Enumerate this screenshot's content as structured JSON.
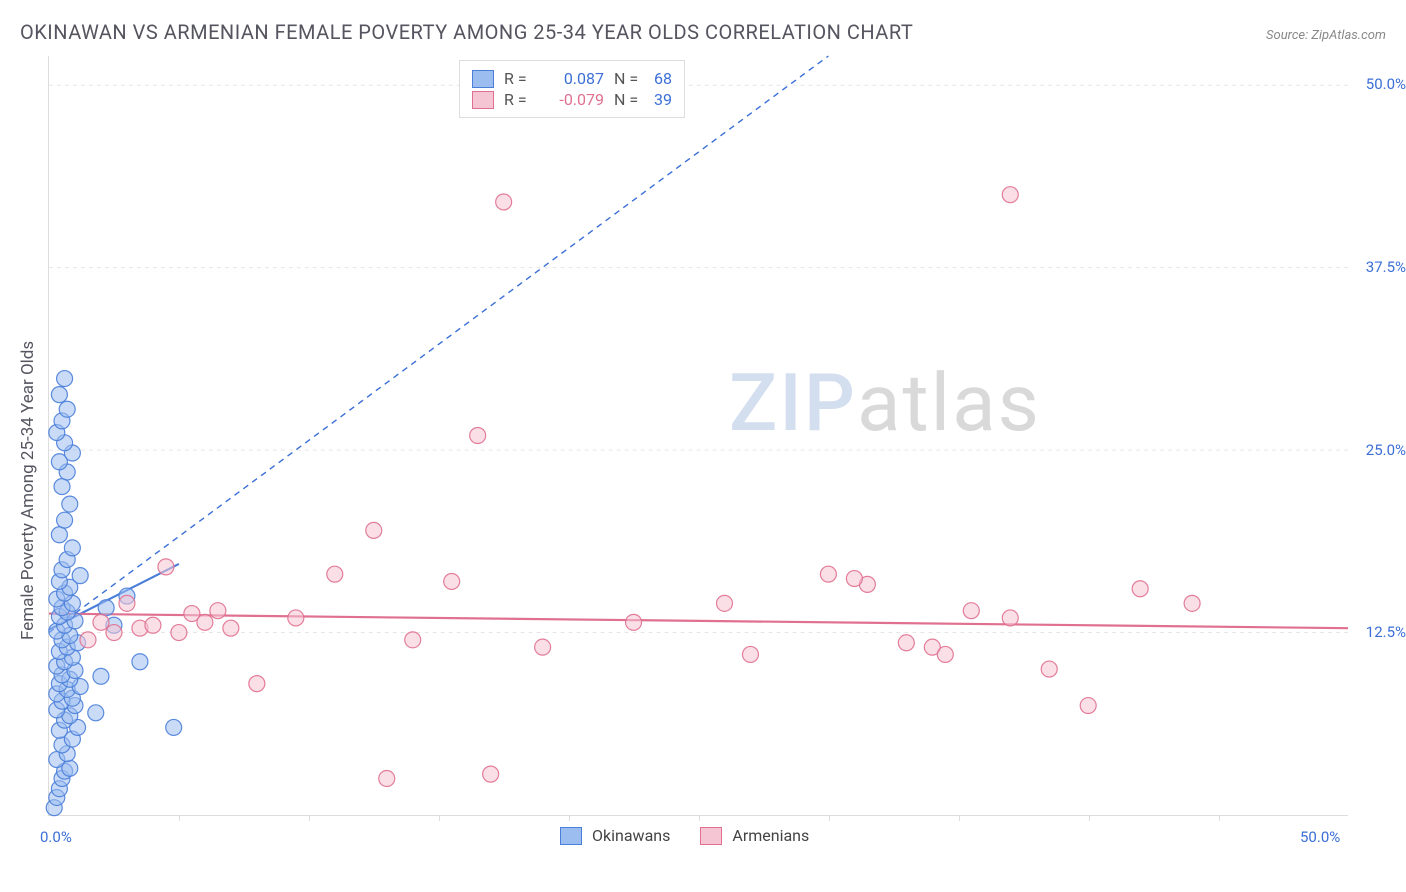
{
  "title": "OKINAWAN VS ARMENIAN FEMALE POVERTY AMONG 25-34 YEAR OLDS CORRELATION CHART",
  "source": "Source: ZipAtlas.com",
  "watermark": {
    "part1": "ZIP",
    "part2": "atlas"
  },
  "y_axis_title": "Female Poverty Among 25-34 Year Olds",
  "chart": {
    "type": "scatter",
    "xlim": [
      0,
      50
    ],
    "ylim": [
      0,
      52
    ],
    "x_tick_step": 5,
    "y_ticks": [
      12.5,
      25.0,
      37.5,
      50.0
    ],
    "x_labels": {
      "min": "0.0%",
      "max": "50.0%"
    },
    "y_tick_labels": [
      "12.5%",
      "25.0%",
      "37.5%",
      "50.0%"
    ],
    "background": "#ffffff",
    "grid_color": "#e6e6e6",
    "axis_color": "#dddddd",
    "tick_label_color": "#3b6fd6",
    "point_radius": 8,
    "point_opacity": 0.55,
    "diag_line": {
      "x1": 0,
      "y1": 12.5,
      "x2": 30,
      "y2": 52,
      "color": "#3b6fd6",
      "dash": "6,5",
      "width": 1.4
    },
    "series": [
      {
        "name": "Okinawans",
        "color_fill": "#9cbdf0",
        "color_stroke": "#4a7ed9",
        "R": 0.087,
        "N": 68,
        "R_color": "#3b6fd6",
        "N_color": "#3b6fd6",
        "trend": {
          "x1": 0,
          "y1": 12.7,
          "x2": 5,
          "y2": 17.2,
          "width": 2.2
        },
        "points": [
          [
            0.2,
            0.5
          ],
          [
            0.3,
            1.2
          ],
          [
            0.4,
            1.8
          ],
          [
            0.5,
            2.5
          ],
          [
            0.6,
            3.0
          ],
          [
            0.8,
            3.2
          ],
          [
            0.3,
            3.8
          ],
          [
            0.7,
            4.2
          ],
          [
            0.5,
            4.8
          ],
          [
            0.9,
            5.2
          ],
          [
            0.4,
            5.8
          ],
          [
            1.1,
            6.0
          ],
          [
            0.6,
            6.5
          ],
          [
            0.8,
            6.8
          ],
          [
            0.3,
            7.2
          ],
          [
            1.0,
            7.5
          ],
          [
            0.5,
            7.8
          ],
          [
            0.9,
            8.0
          ],
          [
            0.3,
            8.3
          ],
          [
            0.7,
            8.6
          ],
          [
            1.2,
            8.8
          ],
          [
            0.4,
            9.0
          ],
          [
            0.8,
            9.3
          ],
          [
            0.5,
            9.6
          ],
          [
            1.0,
            9.9
          ],
          [
            0.3,
            10.2
          ],
          [
            0.6,
            10.5
          ],
          [
            0.9,
            10.8
          ],
          [
            0.4,
            11.2
          ],
          [
            0.7,
            11.5
          ],
          [
            1.1,
            11.8
          ],
          [
            0.5,
            12.0
          ],
          [
            0.8,
            12.3
          ],
          [
            0.3,
            12.6
          ],
          [
            0.6,
            13.0
          ],
          [
            1.0,
            13.3
          ],
          [
            0.4,
            13.6
          ],
          [
            0.7,
            13.9
          ],
          [
            0.5,
            14.2
          ],
          [
            0.9,
            14.5
          ],
          [
            0.3,
            14.8
          ],
          [
            0.6,
            15.2
          ],
          [
            0.8,
            15.6
          ],
          [
            0.4,
            16.0
          ],
          [
            1.2,
            16.4
          ],
          [
            0.5,
            16.8
          ],
          [
            0.7,
            17.5
          ],
          [
            0.9,
            18.3
          ],
          [
            0.4,
            19.2
          ],
          [
            0.6,
            20.2
          ],
          [
            0.8,
            21.3
          ],
          [
            0.5,
            22.5
          ],
          [
            0.7,
            23.5
          ],
          [
            0.4,
            24.2
          ],
          [
            0.9,
            24.8
          ],
          [
            0.6,
            25.5
          ],
          [
            0.3,
            26.2
          ],
          [
            0.5,
            27.0
          ],
          [
            0.7,
            27.8
          ],
          [
            0.4,
            28.8
          ],
          [
            0.6,
            29.9
          ],
          [
            2.5,
            13.0
          ],
          [
            2.2,
            14.2
          ],
          [
            3.0,
            15.0
          ],
          [
            1.8,
            7.0
          ],
          [
            2.0,
            9.5
          ],
          [
            4.8,
            6.0
          ],
          [
            3.5,
            10.5
          ]
        ]
      },
      {
        "name": "Armenians",
        "color_fill": "#f5c5d3",
        "color_stroke": "#e0708f",
        "R": -0.079,
        "N": 39,
        "R_color": "#e0708f",
        "N_color": "#3b6fd6",
        "trend": {
          "x1": 0,
          "y1": 13.8,
          "x2": 50,
          "y2": 12.8,
          "width": 2.2
        },
        "points": [
          [
            1.5,
            12.0
          ],
          [
            2.0,
            13.2
          ],
          [
            2.5,
            12.5
          ],
          [
            3.0,
            14.5
          ],
          [
            3.5,
            12.8
          ],
          [
            4.0,
            13.0
          ],
          [
            4.5,
            17.0
          ],
          [
            5.0,
            12.5
          ],
          [
            5.5,
            13.8
          ],
          [
            6.0,
            13.2
          ],
          [
            6.5,
            14.0
          ],
          [
            7.0,
            12.8
          ],
          [
            8.0,
            9.0
          ],
          [
            9.5,
            13.5
          ],
          [
            11.0,
            16.5
          ],
          [
            12.5,
            19.5
          ],
          [
            13.0,
            2.5
          ],
          [
            14.0,
            12.0
          ],
          [
            15.5,
            16.0
          ],
          [
            16.5,
            26.0
          ],
          [
            17.0,
            2.8
          ],
          [
            17.5,
            42.0
          ],
          [
            19.0,
            11.5
          ],
          [
            22.5,
            13.2
          ],
          [
            26.0,
            14.5
          ],
          [
            27.0,
            11.0
          ],
          [
            30.0,
            16.5
          ],
          [
            31.5,
            15.8
          ],
          [
            33.0,
            11.8
          ],
          [
            34.0,
            11.5
          ],
          [
            35.5,
            14.0
          ],
          [
            37.0,
            13.5
          ],
          [
            38.5,
            10.0
          ],
          [
            40.0,
            7.5
          ],
          [
            42.0,
            15.5
          ],
          [
            44.0,
            14.5
          ],
          [
            37.0,
            42.5
          ],
          [
            34.5,
            11.0
          ],
          [
            31.0,
            16.2
          ]
        ]
      }
    ]
  },
  "legend_top": {
    "rows": [
      {
        "swatch_fill": "#9cbdf0",
        "swatch_stroke": "#4a7ed9",
        "R_label": "R =",
        "R_value": "0.087",
        "R_color": "#3b6fd6",
        "N_label": "N =",
        "N_value": "68",
        "N_color": "#3b6fd6"
      },
      {
        "swatch_fill": "#f5c5d3",
        "swatch_stroke": "#e0708f",
        "R_label": "R =",
        "R_value": "-0.079",
        "R_color": "#e0708f",
        "N_label": "N =",
        "N_value": "39",
        "N_color": "#3b6fd6"
      }
    ]
  },
  "legend_bottom": {
    "items": [
      {
        "swatch_fill": "#9cbdf0",
        "swatch_stroke": "#4a7ed9",
        "label": "Okinawans"
      },
      {
        "swatch_fill": "#f5c5d3",
        "swatch_stroke": "#e0708f",
        "label": "Armenians"
      }
    ]
  }
}
